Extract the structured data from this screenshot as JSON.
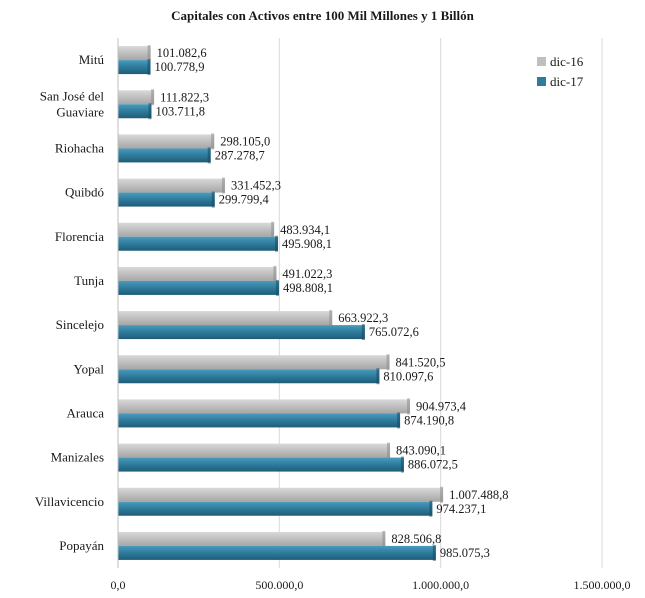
{
  "chart_data": {
    "type": "bar",
    "orientation": "horizontal",
    "title": "Capitales  con Activos  entre 100 Mil Millones  y 1 Billón",
    "categories": [
      "Mitú",
      "San José del Guaviare",
      "Riohacha",
      "Quibdó",
      "Florencia",
      "Tunja",
      "Sincelejo",
      "Yopal",
      "Arauca",
      "Manizales",
      "Villavicencio",
      "Popayán"
    ],
    "category_lines": [
      [
        "Mitú"
      ],
      [
        "San José del",
        "Guaviare"
      ],
      [
        "Riohacha"
      ],
      [
        "Quibdó"
      ],
      [
        "Florencia"
      ],
      [
        "Tunja"
      ],
      [
        "Sincelejo"
      ],
      [
        "Yopal"
      ],
      [
        "Arauca"
      ],
      [
        "Manizales"
      ],
      [
        "Villavicencio"
      ],
      [
        "Popayán"
      ]
    ],
    "series": [
      {
        "name": "dic-16",
        "color": "#bfbfbf",
        "values": [
          101082.6,
          111822.3,
          298105.0,
          331452.3,
          483934.1,
          491022.3,
          663922.3,
          841520.5,
          904973.4,
          843090.1,
          1007488.8,
          828506.8
        ],
        "labels": [
          "101.082,6",
          "111.822,3",
          "298.105,0",
          "331.452,3",
          "483.934,1",
          "491.022,3",
          "663.922,3",
          "841.520,5",
          "904.973,4",
          "843.090,1",
          "1.007.488,8",
          "828.506,8"
        ]
      },
      {
        "name": "dic-17",
        "color": "#2e7b9c",
        "values": [
          100778.9,
          103711.8,
          287278.7,
          299799.4,
          495908.1,
          498808.1,
          765072.6,
          810097.6,
          874190.8,
          886072.5,
          974237.1,
          985075.3
        ],
        "labels": [
          "100.778,9",
          "103.711,8",
          "287.278,7",
          "299.799,4",
          "495.908,1",
          "498.808,1",
          "765.072,6",
          "810.097,6",
          "874.190,8",
          "886.072,5",
          "974.237,1",
          "985.075,3"
        ]
      }
    ],
    "xlim": [
      0,
      1500000
    ],
    "xticks": [
      0,
      500000,
      1000000,
      1500000
    ],
    "xtick_labels": [
      "0,0",
      "500.000,0",
      "1.000.000,0",
      "1.500.000,0"
    ],
    "grid": "vertical",
    "legend_position": "top-right"
  }
}
